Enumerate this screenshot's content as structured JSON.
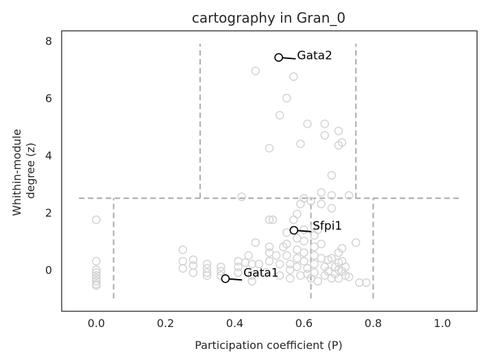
{
  "chart_data": {
    "type": "scatter",
    "title": "cartography in Gran_0",
    "xlabel": "Participation coefficient (P)",
    "ylabel_lines": [
      "Whithin-module",
      "degree (z)"
    ],
    "xlim": [
      -0.1,
      1.1
    ],
    "ylim": [
      -1.45,
      8.35
    ],
    "xticks": [
      0.0,
      0.2,
      0.4,
      0.6,
      0.8,
      1.0
    ],
    "xtick_labels": [
      "0.0",
      "0.2",
      "0.4",
      "0.6",
      "0.8",
      "1.0"
    ],
    "yticks": [
      0,
      2,
      4,
      6,
      8
    ],
    "ytick_labels": [
      "0",
      "2",
      "4",
      "6",
      "8"
    ],
    "grid": false,
    "colors": {
      "points": "#d3d3d3",
      "highlight": "#000000",
      "boundaries": "#b0b0b0",
      "axes": "#262626"
    },
    "boundaries": [
      {
        "x": [
          -0.05,
          1.05
        ],
        "y": [
          2.5,
          2.5
        ]
      },
      {
        "x": [
          0.05,
          0.05
        ],
        "y": [
          -1.0,
          2.5
        ]
      },
      {
        "x": [
          0.62,
          0.62
        ],
        "y": [
          -1.0,
          2.5
        ]
      },
      {
        "x": [
          0.8,
          0.8
        ],
        "y": [
          -1.0,
          2.5
        ]
      },
      {
        "x": [
          0.3,
          0.3
        ],
        "y": [
          2.5,
          7.9
        ]
      },
      {
        "x": [
          0.75,
          0.75
        ],
        "y": [
          2.5,
          7.9
        ]
      }
    ],
    "points": [
      [
        0.0,
        1.75
      ],
      [
        0.0,
        0.3
      ],
      [
        0.0,
        0.0
      ],
      [
        0.0,
        -0.1
      ],
      [
        0.0,
        -0.2
      ],
      [
        0.0,
        -0.3
      ],
      [
        0.0,
        -0.4
      ],
      [
        0.0,
        -0.5
      ],
      [
        0.0,
        -0.55
      ],
      [
        0.25,
        0.7
      ],
      [
        0.25,
        0.3
      ],
      [
        0.25,
        0.05
      ],
      [
        0.28,
        0.35
      ],
      [
        0.28,
        0.15
      ],
      [
        0.28,
        -0.1
      ],
      [
        0.32,
        0.2
      ],
      [
        0.32,
        0.05
      ],
      [
        0.32,
        -0.1
      ],
      [
        0.32,
        -0.2
      ],
      [
        0.36,
        0.1
      ],
      [
        0.36,
        -0.05
      ],
      [
        0.36,
        -0.2
      ],
      [
        0.41,
        0.3
      ],
      [
        0.41,
        0.1
      ],
      [
        0.41,
        -0.1
      ],
      [
        0.43,
        0.25
      ],
      [
        0.44,
        0.5
      ],
      [
        0.45,
        0.2
      ],
      [
        0.45,
        -0.2
      ],
      [
        0.45,
        -0.4
      ],
      [
        0.42,
        2.55
      ],
      [
        0.46,
        0.95
      ],
      [
        0.47,
        0.2
      ],
      [
        0.49,
        -0.1
      ],
      [
        0.5,
        0.6
      ],
      [
        0.5,
        0.3
      ],
      [
        0.5,
        0.8
      ],
      [
        0.5,
        1.75
      ],
      [
        0.51,
        1.75
      ],
      [
        0.52,
        0.5
      ],
      [
        0.53,
        0.2
      ],
      [
        0.53,
        -0.2
      ],
      [
        0.54,
        0.8
      ],
      [
        0.55,
        1.3
      ],
      [
        0.55,
        0.9
      ],
      [
        0.55,
        0.5
      ],
      [
        0.56,
        0.2
      ],
      [
        0.56,
        0.0
      ],
      [
        0.56,
        -0.3
      ],
      [
        0.57,
        1.75
      ],
      [
        0.58,
        1.95
      ],
      [
        0.58,
        1.1
      ],
      [
        0.58,
        0.7
      ],
      [
        0.58,
        0.4
      ],
      [
        0.58,
        0.1
      ],
      [
        0.59,
        -0.2
      ],
      [
        0.59,
        2.3
      ],
      [
        0.6,
        2.5
      ],
      [
        0.6,
        1.4
      ],
      [
        0.6,
        1.0
      ],
      [
        0.6,
        0.6
      ],
      [
        0.6,
        0.3
      ],
      [
        0.61,
        0.05
      ],
      [
        0.61,
        -0.15
      ],
      [
        0.62,
        -0.3
      ],
      [
        0.62,
        2.4
      ],
      [
        0.63,
        1.5
      ],
      [
        0.63,
        1.2
      ],
      [
        0.63,
        0.8
      ],
      [
        0.63,
        0.5
      ],
      [
        0.63,
        0.2
      ],
      [
        0.63,
        -0.1
      ],
      [
        0.64,
        1.4
      ],
      [
        0.64,
        -0.4
      ],
      [
        0.65,
        2.3
      ],
      [
        0.65,
        2.7
      ],
      [
        0.65,
        0.9
      ],
      [
        0.65,
        0.4
      ],
      [
        0.66,
        0.1
      ],
      [
        0.66,
        -0.2
      ],
      [
        0.67,
        0.35
      ],
      [
        0.67,
        -0.05
      ],
      [
        0.68,
        2.6
      ],
      [
        0.68,
        2.15
      ],
      [
        0.68,
        0.4
      ],
      [
        0.68,
        -0.3
      ],
      [
        0.69,
        0.1
      ],
      [
        0.69,
        -0.15
      ],
      [
        0.7,
        0.6
      ],
      [
        0.7,
        0.25
      ],
      [
        0.7,
        0.0
      ],
      [
        0.7,
        -0.3
      ],
      [
        0.71,
        0.75
      ],
      [
        0.71,
        0.3
      ],
      [
        0.71,
        -0.05
      ],
      [
        0.72,
        0.1
      ],
      [
        0.72,
        -0.2
      ],
      [
        0.73,
        2.6
      ],
      [
        0.73,
        -0.25
      ],
      [
        0.75,
        0.95
      ],
      [
        0.76,
        -0.45
      ],
      [
        0.78,
        -0.45
      ],
      [
        0.46,
        6.95
      ],
      [
        0.55,
        6.0
      ],
      [
        0.57,
        6.75
      ],
      [
        0.53,
        5.4
      ],
      [
        0.61,
        5.1
      ],
      [
        0.66,
        5.1
      ],
      [
        0.7,
        4.85
      ],
      [
        0.66,
        4.7
      ],
      [
        0.71,
        4.45
      ],
      [
        0.7,
        4.35
      ],
      [
        0.59,
        4.4
      ],
      [
        0.5,
        4.25
      ],
      [
        0.68,
        3.3
      ]
    ],
    "annotations": [
      {
        "label": "Gata2",
        "x": 0.527,
        "y": 7.42,
        "text_x": 0.58,
        "text_y": 7.5
      },
      {
        "label": "Sfpi1",
        "x": 0.571,
        "y": 1.38,
        "text_x": 0.625,
        "text_y": 1.55
      },
      {
        "label": "Gata1",
        "x": 0.373,
        "y": -0.31,
        "text_x": 0.425,
        "text_y": -0.1
      }
    ]
  }
}
